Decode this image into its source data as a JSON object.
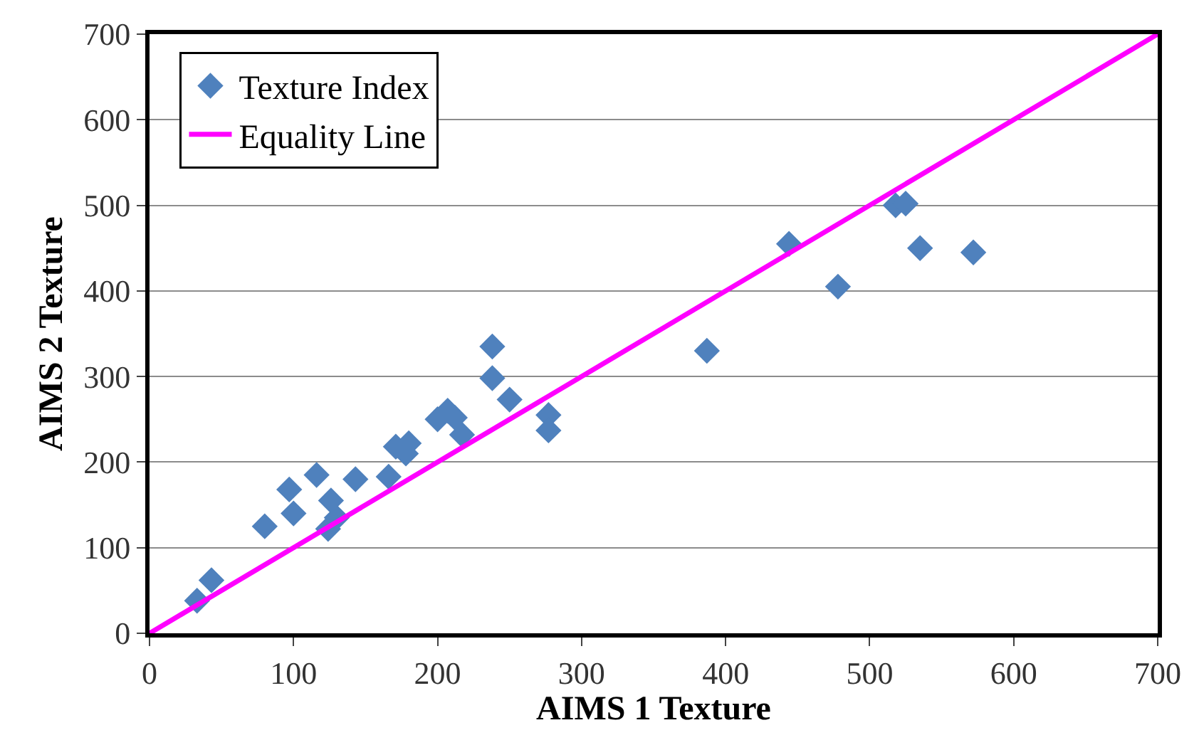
{
  "chart_data": {
    "type": "scatter",
    "xlabel": "AIMS 1 Texture",
    "ylabel": "AIMS 2 Texture",
    "xlim": [
      0,
      700
    ],
    "ylim": [
      0,
      700
    ],
    "xticks": [
      0,
      100,
      200,
      300,
      400,
      500,
      600,
      700
    ],
    "yticks": [
      0,
      100,
      200,
      300,
      400,
      500,
      600,
      700
    ],
    "grid": "y",
    "legend": "top left",
    "series": [
      {
        "name": "Texture Index",
        "marker": "diamond",
        "color": "#4f81bd",
        "x": [
          33,
          40,
          43,
          80,
          97,
          100,
          116,
          124,
          126,
          130,
          143,
          166,
          171,
          178,
          180,
          200,
          207,
          212,
          217,
          238,
          238,
          250,
          277,
          277,
          387,
          444,
          478,
          518,
          525,
          535,
          572
        ],
        "values": [
          38,
          null,
          62,
          125,
          168,
          140,
          185,
          122,
          155,
          135,
          180,
          183,
          218,
          210,
          222,
          250,
          260,
          252,
          232,
          335,
          298,
          273,
          255,
          237,
          330,
          455,
          405,
          500,
          502,
          450,
          445
        ]
      },
      {
        "name": "Equality Line",
        "type": "line",
        "marker": "none",
        "line_style": "solid",
        "color": "#ff00ff",
        "x": [
          0,
          700
        ],
        "values": [
          0,
          700
        ]
      }
    ]
  }
}
